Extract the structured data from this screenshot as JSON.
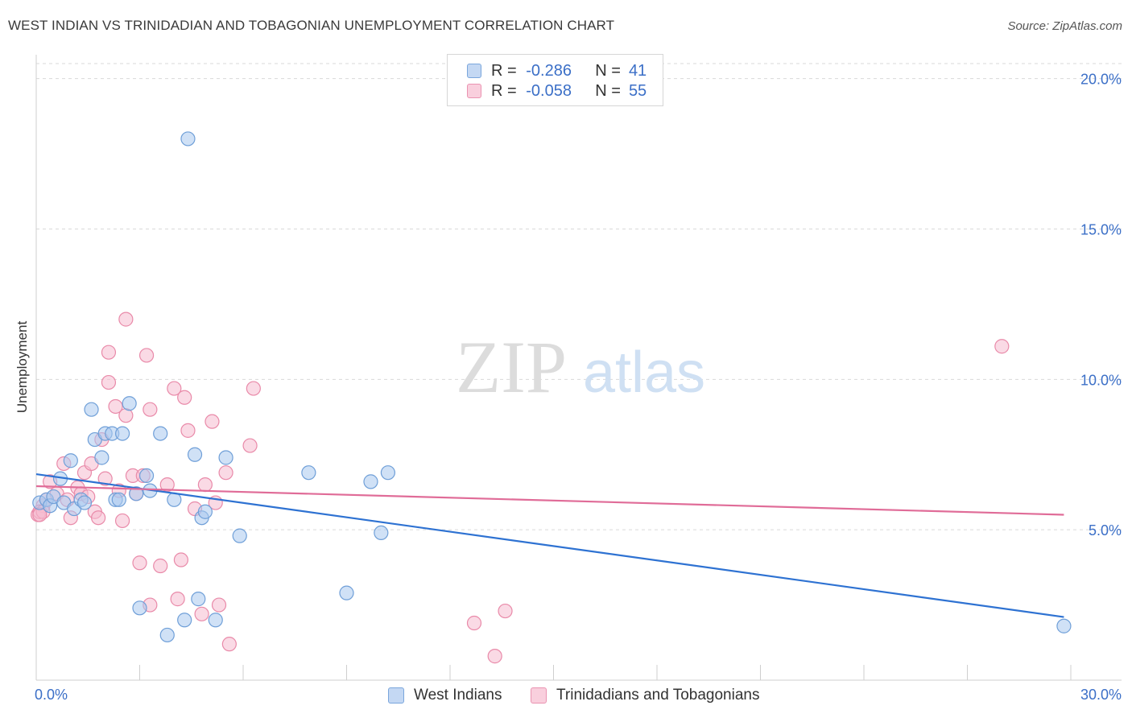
{
  "title": "WEST INDIAN VS TRINIDADIAN AND TOBAGONIAN UNEMPLOYMENT CORRELATION CHART",
  "source": "Source: ZipAtlas.com",
  "watermark": {
    "zip": "ZIP",
    "atlas": "atlas"
  },
  "legend": {
    "rows": [
      {
        "r_label": "R =",
        "r_value": "-0.286",
        "n_label": "N =",
        "n_value": "41"
      },
      {
        "r_label": "R =",
        "r_value": "-0.058",
        "n_label": "N =",
        "n_value": "55"
      }
    ]
  },
  "colors": {
    "blue_fill": "#aac8ee",
    "blue_stroke": "#6f9fd8",
    "blue_line": "#2e72d2",
    "pink_fill": "#f6bcd0",
    "pink_stroke": "#e98aa9",
    "pink_line": "#e06c98",
    "axis_text": "#3b6fc7",
    "grid": "#d9d9d9"
  },
  "chart_data": {
    "type": "scatter",
    "title": "WEST INDIAN VS TRINIDADIAN AND TOBAGONIAN UNEMPLOYMENT CORRELATION CHART",
    "xlabel": "",
    "ylabel": "Unemployment",
    "xlim": [
      0,
      30
    ],
    "ylim": [
      0,
      20.5
    ],
    "x_tick_labels": [
      "0.0%",
      "30.0%"
    ],
    "y_ticks": [
      5,
      10,
      15,
      20
    ],
    "y_tick_labels": [
      "5.0%",
      "10.0%",
      "15.0%",
      "20.0%"
    ],
    "grid": "horizontal dashed",
    "series": [
      {
        "name": "West Indians",
        "color": "blue",
        "trend": {
          "x": [
            0,
            29.8
          ],
          "y": [
            6.85,
            2.1
          ]
        },
        "points": [
          [
            0.1,
            5.9
          ],
          [
            0.3,
            6.0
          ],
          [
            0.4,
            5.8
          ],
          [
            0.5,
            6.1
          ],
          [
            0.7,
            6.7
          ],
          [
            0.8,
            5.9
          ],
          [
            1.0,
            7.3
          ],
          [
            1.1,
            5.7
          ],
          [
            1.3,
            6.0
          ],
          [
            1.4,
            5.9
          ],
          [
            1.6,
            9.0
          ],
          [
            1.7,
            8.0
          ],
          [
            1.9,
            7.4
          ],
          [
            2.0,
            8.2
          ],
          [
            2.2,
            8.2
          ],
          [
            2.3,
            6.0
          ],
          [
            2.4,
            6.0
          ],
          [
            2.5,
            8.2
          ],
          [
            2.7,
            9.2
          ],
          [
            2.9,
            6.2
          ],
          [
            3.0,
            2.4
          ],
          [
            3.2,
            6.8
          ],
          [
            3.3,
            6.3
          ],
          [
            3.6,
            8.2
          ],
          [
            3.8,
            1.5
          ],
          [
            4.0,
            6.0
          ],
          [
            4.3,
            2.0
          ],
          [
            4.4,
            18.0
          ],
          [
            4.6,
            7.5
          ],
          [
            4.7,
            2.7
          ],
          [
            4.8,
            5.4
          ],
          [
            4.9,
            5.6
          ],
          [
            5.2,
            2.0
          ],
          [
            5.5,
            7.4
          ],
          [
            5.9,
            4.8
          ],
          [
            7.9,
            6.9
          ],
          [
            9.0,
            2.9
          ],
          [
            9.7,
            6.6
          ],
          [
            10.0,
            4.9
          ],
          [
            10.2,
            6.9
          ],
          [
            29.8,
            1.8
          ]
        ]
      },
      {
        "name": "Trinidadians and Tobagonians",
        "color": "pink",
        "trend": {
          "x": [
            0,
            29.8
          ],
          "y": [
            6.45,
            5.5
          ]
        },
        "points": [
          [
            0.05,
            5.5
          ],
          [
            0.2,
            5.8
          ],
          [
            0.3,
            6.0
          ],
          [
            0.4,
            6.6
          ],
          [
            0.6,
            6.2
          ],
          [
            0.8,
            7.2
          ],
          [
            0.9,
            6.0
          ],
          [
            1.0,
            5.4
          ],
          [
            1.2,
            6.4
          ],
          [
            1.3,
            6.2
          ],
          [
            1.4,
            6.9
          ],
          [
            1.5,
            6.1
          ],
          [
            1.6,
            7.2
          ],
          [
            1.7,
            5.6
          ],
          [
            1.8,
            5.4
          ],
          [
            1.9,
            8.0
          ],
          [
            2.0,
            6.7
          ],
          [
            2.1,
            9.9
          ],
          [
            2.1,
            10.9
          ],
          [
            2.3,
            9.1
          ],
          [
            2.4,
            6.3
          ],
          [
            2.5,
            5.3
          ],
          [
            2.6,
            12.0
          ],
          [
            2.6,
            8.8
          ],
          [
            2.8,
            6.8
          ],
          [
            2.9,
            6.2
          ],
          [
            3.0,
            3.9
          ],
          [
            3.1,
            6.8
          ],
          [
            3.2,
            10.8
          ],
          [
            3.3,
            2.5
          ],
          [
            3.3,
            9.0
          ],
          [
            3.6,
            3.8
          ],
          [
            3.8,
            6.5
          ],
          [
            4.0,
            9.7
          ],
          [
            4.1,
            2.7
          ],
          [
            4.2,
            4.0
          ],
          [
            4.3,
            9.4
          ],
          [
            4.4,
            8.3
          ],
          [
            4.6,
            5.7
          ],
          [
            4.8,
            2.2
          ],
          [
            4.9,
            6.5
          ],
          [
            5.1,
            8.6
          ],
          [
            5.2,
            5.9
          ],
          [
            5.3,
            2.5
          ],
          [
            5.5,
            6.9
          ],
          [
            5.6,
            1.2
          ],
          [
            6.2,
            7.8
          ],
          [
            6.3,
            9.7
          ],
          [
            12.7,
            1.9
          ],
          [
            13.3,
            0.8
          ],
          [
            13.6,
            2.3
          ],
          [
            28.0,
            11.1
          ],
          [
            0.1,
            5.6
          ],
          [
            0.2,
            5.6
          ],
          [
            0.1,
            5.5
          ]
        ]
      }
    ]
  },
  "bottom_legend": {
    "items": [
      {
        "label": "West Indians"
      },
      {
        "label": "Trinidadians and Tobagonians"
      }
    ]
  }
}
